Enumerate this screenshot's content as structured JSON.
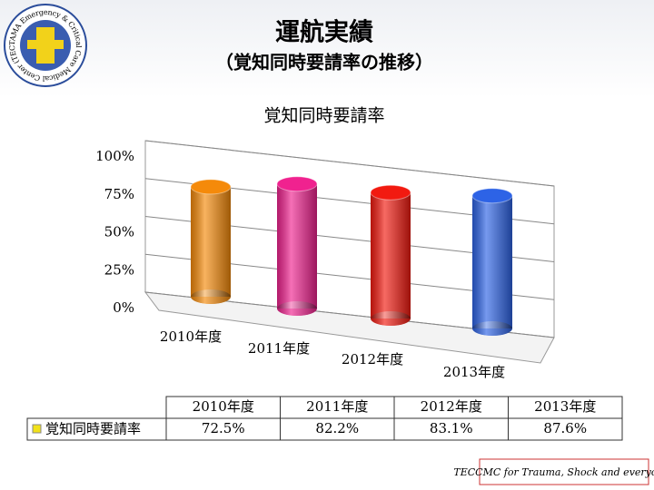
{
  "header": {
    "title": "運航実績",
    "subtitle": "（覚知同時要請率の推移）",
    "logo": "TAMA Emergency & Critical Care Medical Center (TECCMC)"
  },
  "chart_data": {
    "type": "bar3d",
    "title": "覚知同時要請率",
    "categories": [
      "2010年度",
      "2011年度",
      "2012年度",
      "2013年度"
    ],
    "series": [
      {
        "name": "覚知同時要請率",
        "colors": [
          "#f58a0a",
          "#f0228f",
          "#f21a10",
          "#2d63e6"
        ],
        "values": [
          72.5,
          82.2,
          83.1,
          87.6
        ],
        "value_labels": [
          "72.5%",
          "82.2%",
          "83.1%",
          "87.6%"
        ]
      }
    ],
    "ylim": [
      0,
      100
    ],
    "yticks": [
      {
        "value": 0,
        "label": "0%"
      },
      {
        "value": 25,
        "label": "25%"
      },
      {
        "value": 50,
        "label": "50%"
      },
      {
        "value": 75,
        "label": "75%"
      },
      {
        "value": 100,
        "label": "100%"
      }
    ],
    "grid": true
  },
  "footer": {
    "text": "TECCMC for Trauma, Shock and everyone."
  }
}
